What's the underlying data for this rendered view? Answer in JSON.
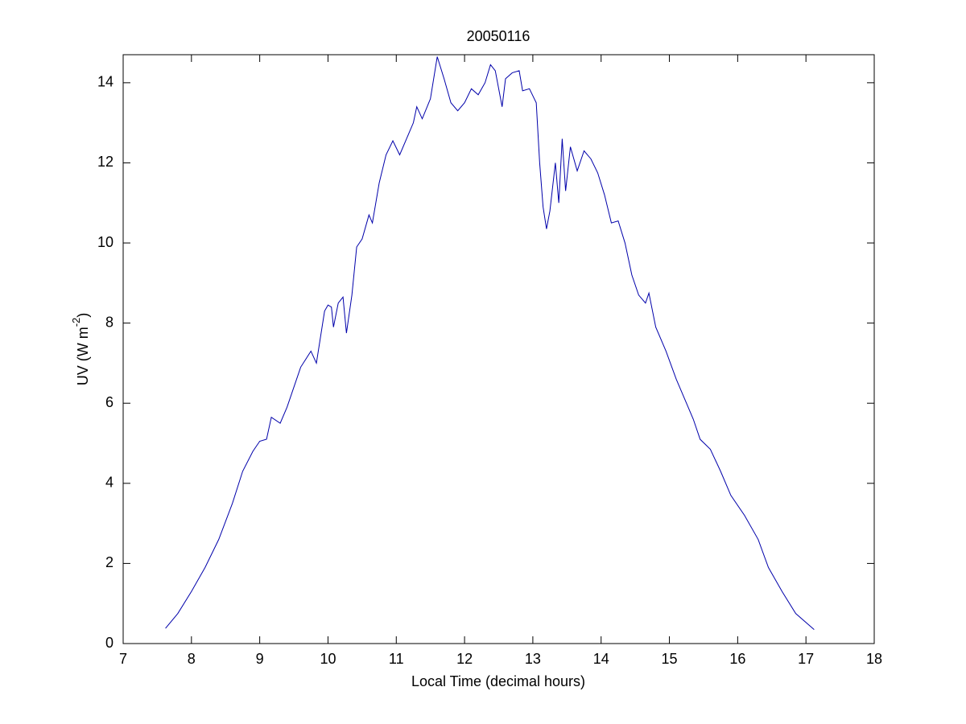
{
  "chart_data": {
    "type": "line",
    "title": "20050116",
    "xlabel": "Local Time (decimal hours)",
    "ylabel": [
      "UV (W m",
      "-2",
      ")"
    ],
    "xlim": [
      7,
      18
    ],
    "xticks": [
      7,
      8,
      9,
      10,
      11,
      12,
      13,
      14,
      15,
      16,
      17,
      18
    ],
    "ylim": [
      0,
      14.7
    ],
    "yticks": [
      0,
      2,
      4,
      6,
      8,
      10,
      12,
      14
    ],
    "grid": false,
    "series": [
      {
        "color": "#0000aa",
        "x": [
          7.62,
          7.8,
          8.0,
          8.2,
          8.4,
          8.6,
          8.75,
          8.9,
          9.0,
          9.1,
          9.17,
          9.3,
          9.4,
          9.5,
          9.6,
          9.75,
          9.83,
          9.95,
          10.0,
          10.05,
          10.08,
          10.15,
          10.22,
          10.27,
          10.35,
          10.42,
          10.5,
          10.6,
          10.65,
          10.75,
          10.85,
          10.95,
          11.05,
          11.15,
          11.25,
          11.3,
          11.38,
          11.5,
          11.6,
          11.7,
          11.8,
          11.9,
          12.0,
          12.1,
          12.2,
          12.3,
          12.38,
          12.45,
          12.55,
          12.6,
          12.7,
          12.8,
          12.85,
          12.95,
          13.05,
          13.1,
          13.15,
          13.2,
          13.25,
          13.33,
          13.38,
          13.43,
          13.48,
          13.55,
          13.65,
          13.75,
          13.85,
          13.95,
          14.05,
          14.15,
          14.25,
          14.35,
          14.45,
          14.55,
          14.65,
          14.7,
          14.8,
          14.95,
          15.1,
          15.25,
          15.35,
          15.45,
          15.6,
          15.75,
          15.9,
          16.1,
          16.3,
          16.45,
          16.65,
          16.85,
          17.12
        ],
        "values": [
          0.38,
          0.75,
          1.3,
          1.9,
          2.6,
          3.5,
          4.3,
          4.8,
          5.05,
          5.1,
          5.65,
          5.5,
          5.9,
          6.4,
          6.9,
          7.3,
          7.0,
          8.3,
          8.45,
          8.4,
          7.9,
          8.5,
          8.65,
          7.75,
          8.7,
          9.9,
          10.1,
          10.7,
          10.5,
          11.5,
          12.2,
          12.55,
          12.2,
          12.6,
          13.0,
          13.4,
          13.1,
          13.6,
          14.65,
          14.1,
          13.5,
          13.3,
          13.5,
          13.85,
          13.7,
          14.0,
          14.45,
          14.3,
          13.4,
          14.1,
          14.25,
          14.3,
          13.8,
          13.85,
          13.5,
          12.0,
          10.9,
          10.35,
          10.8,
          12.0,
          11.0,
          12.6,
          11.3,
          12.4,
          11.8,
          12.3,
          12.1,
          11.75,
          11.2,
          10.5,
          10.55,
          10.0,
          9.2,
          8.7,
          8.5,
          8.75,
          7.9,
          7.3,
          6.6,
          6.0,
          5.6,
          5.1,
          4.85,
          4.3,
          3.7,
          3.2,
          2.6,
          1.9,
          1.3,
          0.75,
          0.35
        ]
      }
    ]
  }
}
